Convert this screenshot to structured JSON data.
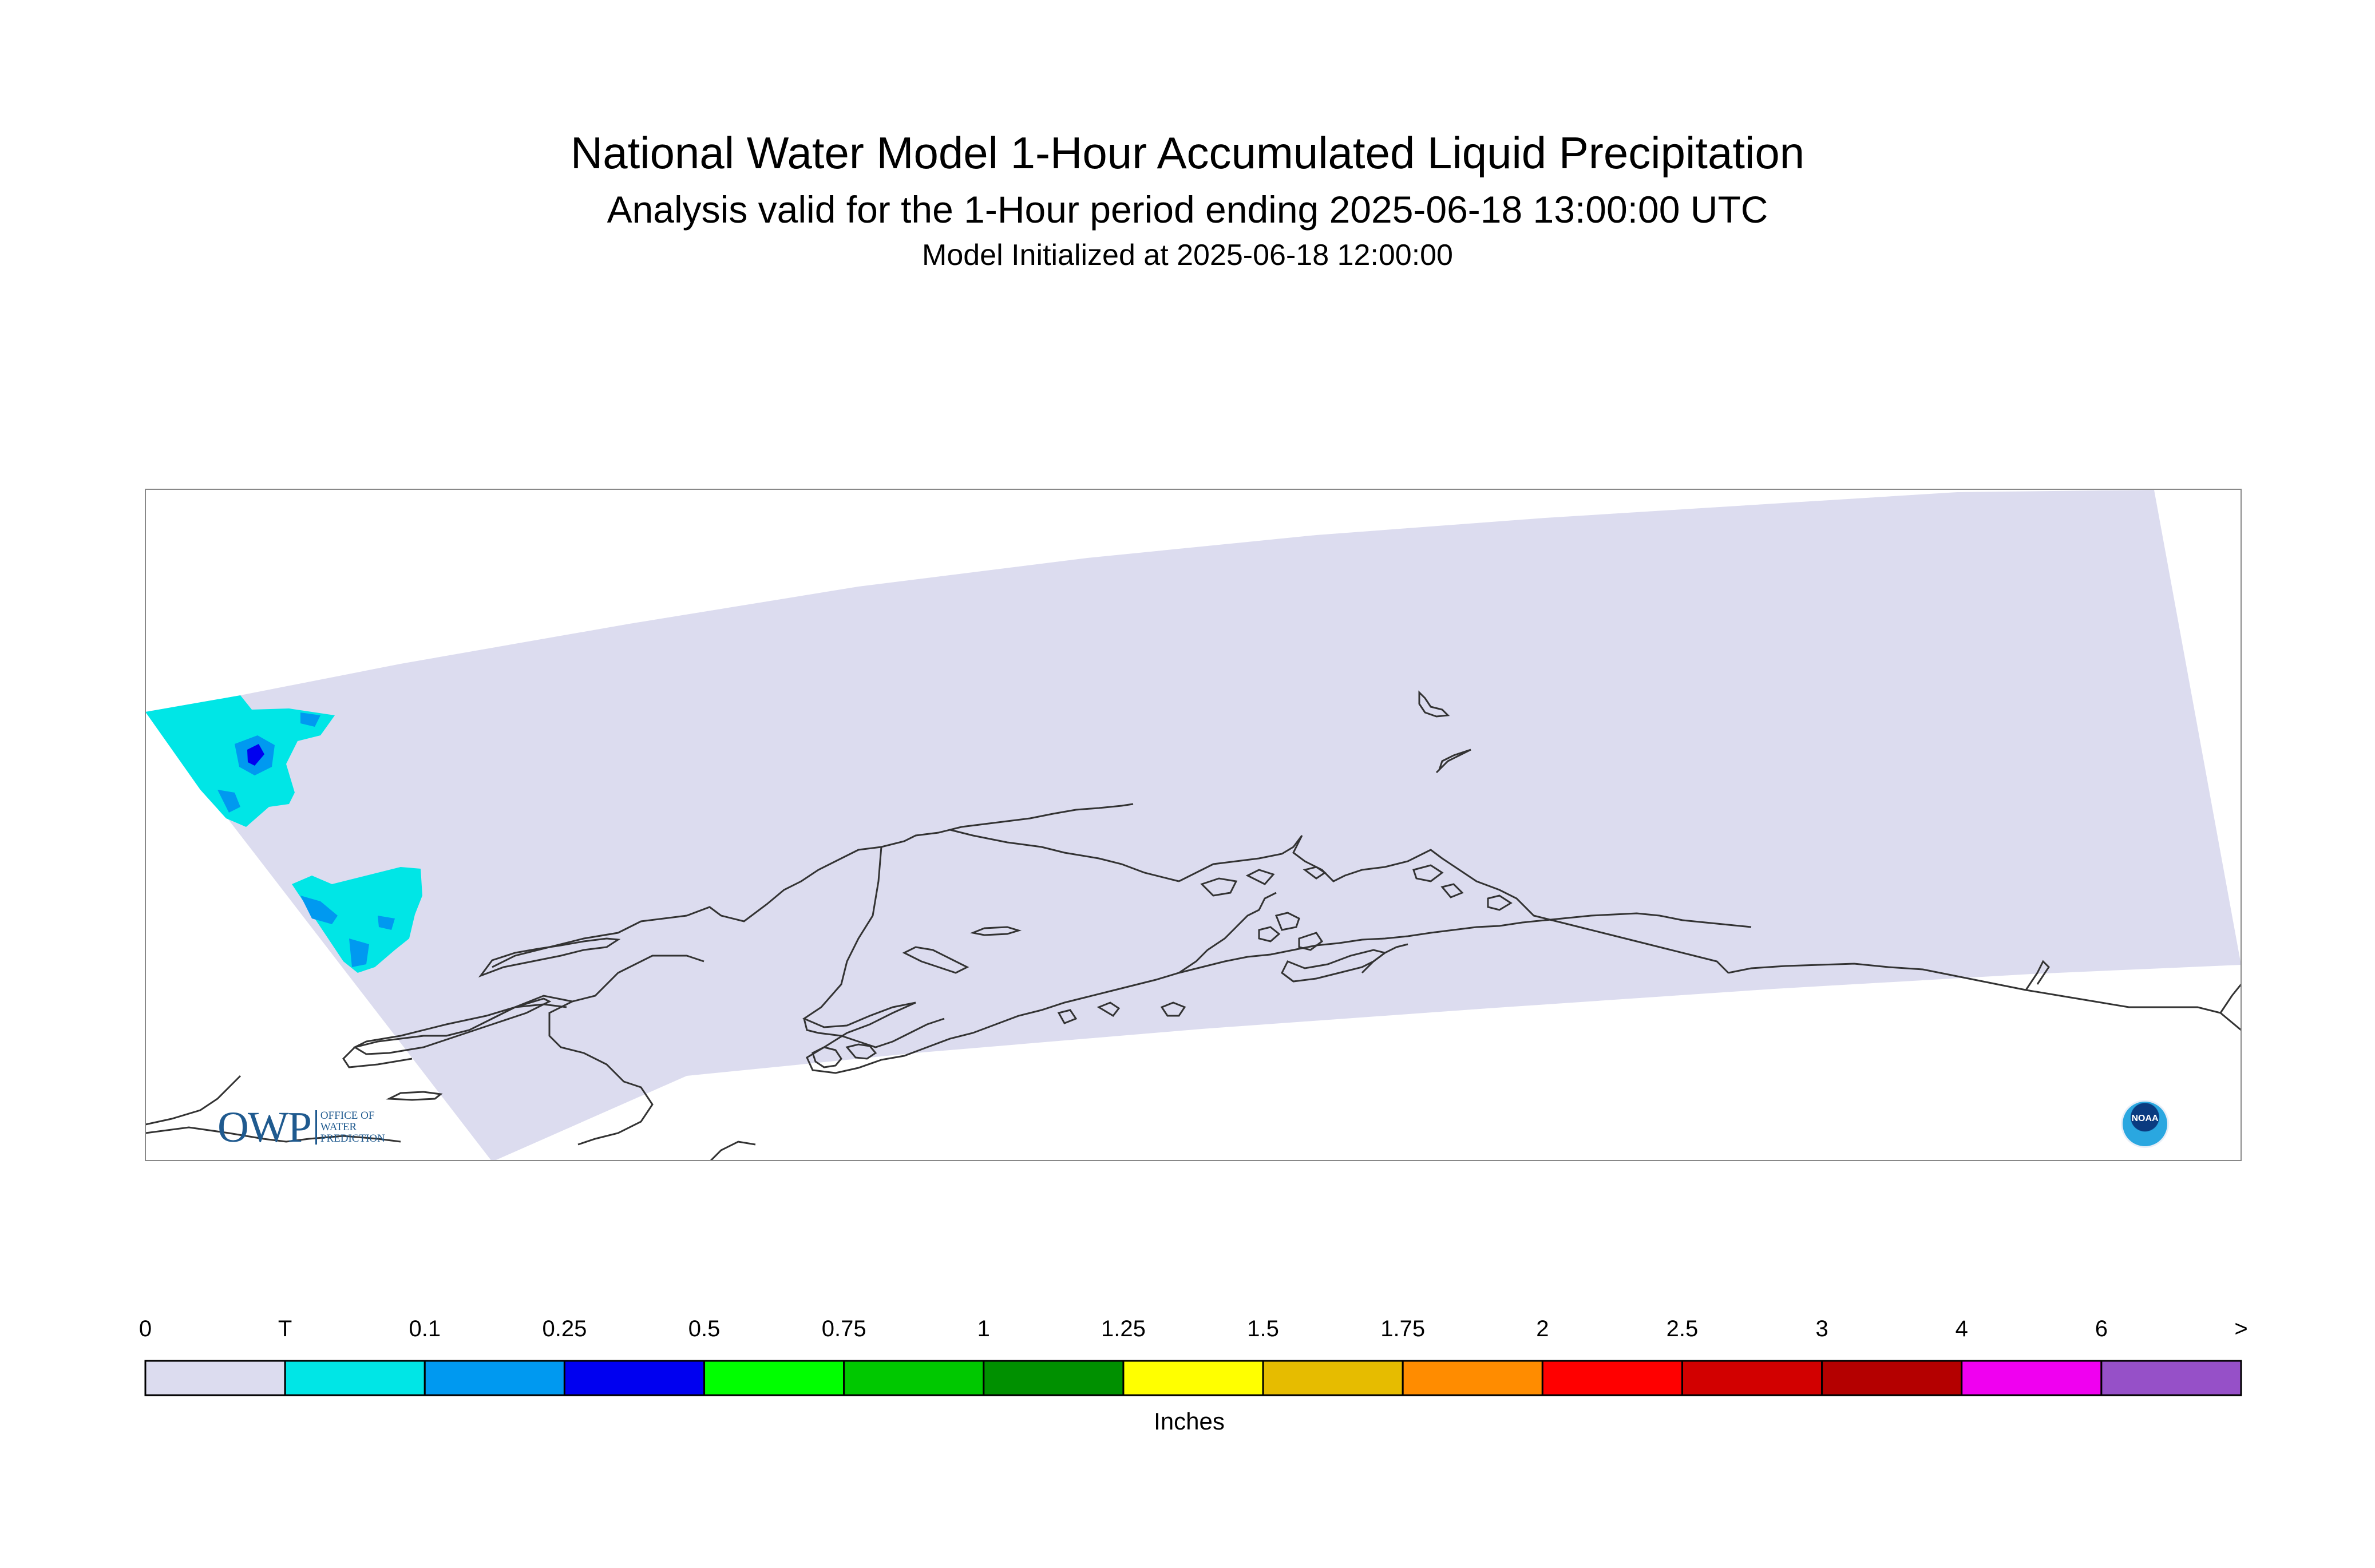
{
  "header": {
    "title": "National Water Model 1-Hour Accumulated Liquid Precipitation",
    "subtitle": "Analysis valid for the 1-Hour period ending 2025-06-18 13:00:00 UTC",
    "init_line": "Model Initialized at 2025-06-18 12:00:00"
  },
  "map": {
    "domain_fill_color": "#dcdcef",
    "coastline_color": "#333333",
    "precip_colors": {
      "trace": "#00e6e6",
      "light": "#0099f0",
      "moderate": "#0000f0"
    }
  },
  "legend": {
    "unit_label": "Inches",
    "tick_labels": [
      "0",
      "T",
      "0.1",
      "0.25",
      "0.5",
      "0.75",
      "1",
      "1.25",
      "1.5",
      "1.75",
      "2",
      "2.5",
      "3",
      "4",
      "6",
      ">"
    ],
    "colors": [
      "#dcdcef",
      "#00e6e6",
      "#0099f0",
      "#0000f0",
      "#00ff00",
      "#00c800",
      "#009000",
      "#ffff00",
      "#e6bc00",
      "#ff8c00",
      "#ff0000",
      "#d20000",
      "#b40000",
      "#f000f0",
      "#9650c8"
    ]
  },
  "logos": {
    "owp_mark": "OWP",
    "owp_text_lines": [
      "OFFICE OF",
      "WATER",
      "PREDICTION"
    ],
    "noaa_label": "NOAA"
  }
}
